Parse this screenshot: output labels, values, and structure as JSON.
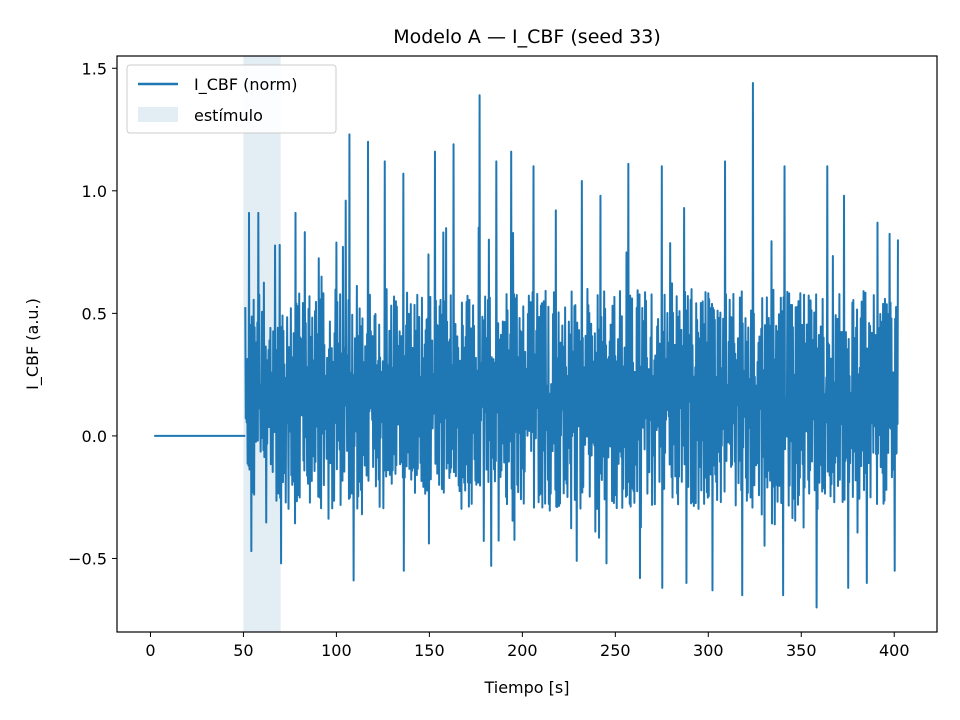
{
  "chart_data": {
    "type": "line",
    "title": "Modelo A — I_CBF (seed 33)",
    "xlabel": "Tiempo [s]",
    "ylabel": "I_CBF (a.u.)",
    "xlim": [
      -18,
      423
    ],
    "ylim": [
      -0.8,
      1.55
    ],
    "xticks": [
      0,
      50,
      100,
      150,
      200,
      250,
      300,
      350,
      400
    ],
    "yticks": [
      -0.5,
      0.0,
      0.5,
      1.0,
      1.5
    ],
    "xtick_labels": [
      "0",
      "50",
      "100",
      "150",
      "200",
      "250",
      "300",
      "350",
      "400"
    ],
    "ytick_labels": [
      "−0.5",
      "0.0",
      "0.5",
      "1.0",
      "1.5"
    ],
    "grid": false,
    "legend_position": "top-left",
    "legend": {
      "line_label": "I_CBF (norm)",
      "span_label": "estímulo"
    },
    "colors": {
      "line": "#1f77b4",
      "span": "#d6e6f0"
    },
    "stimulus_span": {
      "start": 50,
      "end": 70
    },
    "series": [
      {
        "name": "I_CBF (norm)",
        "baseline": {
          "x": [
            2,
            51
          ],
          "y": [
            0.0,
            0.0
          ]
        },
        "signal": {
          "x_start": 51,
          "x_end": 402,
          "typical_low": -0.3,
          "typical_high": 0.6,
          "peaks": [
            {
              "x": 53,
              "y": 0.91
            },
            {
              "x": 58,
              "y": 0.91
            },
            {
              "x": 78,
              "y": 0.91
            },
            {
              "x": 105,
              "y": 0.96
            },
            {
              "x": 107,
              "y": 1.23
            },
            {
              "x": 117,
              "y": 1.2
            },
            {
              "x": 126,
              "y": 1.12
            },
            {
              "x": 136,
              "y": 1.07
            },
            {
              "x": 153,
              "y": 1.16
            },
            {
              "x": 163,
              "y": 1.19
            },
            {
              "x": 177,
              "y": 1.39
            },
            {
              "x": 186,
              "y": 1.12
            },
            {
              "x": 194,
              "y": 1.16
            },
            {
              "x": 206,
              "y": 1.1
            },
            {
              "x": 218,
              "y": 0.92
            },
            {
              "x": 232,
              "y": 1.04
            },
            {
              "x": 242,
              "y": 0.98
            },
            {
              "x": 257,
              "y": 1.11
            },
            {
              "x": 275,
              "y": 1.1
            },
            {
              "x": 287,
              "y": 0.93
            },
            {
              "x": 309,
              "y": 1.12
            },
            {
              "x": 324,
              "y": 1.44
            },
            {
              "x": 341,
              "y": 1.1
            },
            {
              "x": 364,
              "y": 1.1
            },
            {
              "x": 373,
              "y": 0.98
            },
            {
              "x": 391,
              "y": 0.87
            }
          ],
          "troughs": [
            {
              "x": 54,
              "y": -0.47
            },
            {
              "x": 70,
              "y": -0.52
            },
            {
              "x": 109,
              "y": -0.49
            },
            {
              "x": 109,
              "y": -0.59
            },
            {
              "x": 136,
              "y": -0.55
            },
            {
              "x": 183,
              "y": -0.53
            },
            {
              "x": 229,
              "y": -0.51
            },
            {
              "x": 245,
              "y": -0.52
            },
            {
              "x": 263,
              "y": -0.58
            },
            {
              "x": 275,
              "y": -0.62
            },
            {
              "x": 288,
              "y": -0.6
            },
            {
              "x": 302,
              "y": -0.63
            },
            {
              "x": 318,
              "y": -0.65
            },
            {
              "x": 340,
              "y": -0.65
            },
            {
              "x": 358,
              "y": -0.7
            },
            {
              "x": 375,
              "y": -0.62
            },
            {
              "x": 385,
              "y": -0.6
            },
            {
              "x": 400,
              "y": -0.55
            }
          ]
        }
      }
    ]
  }
}
